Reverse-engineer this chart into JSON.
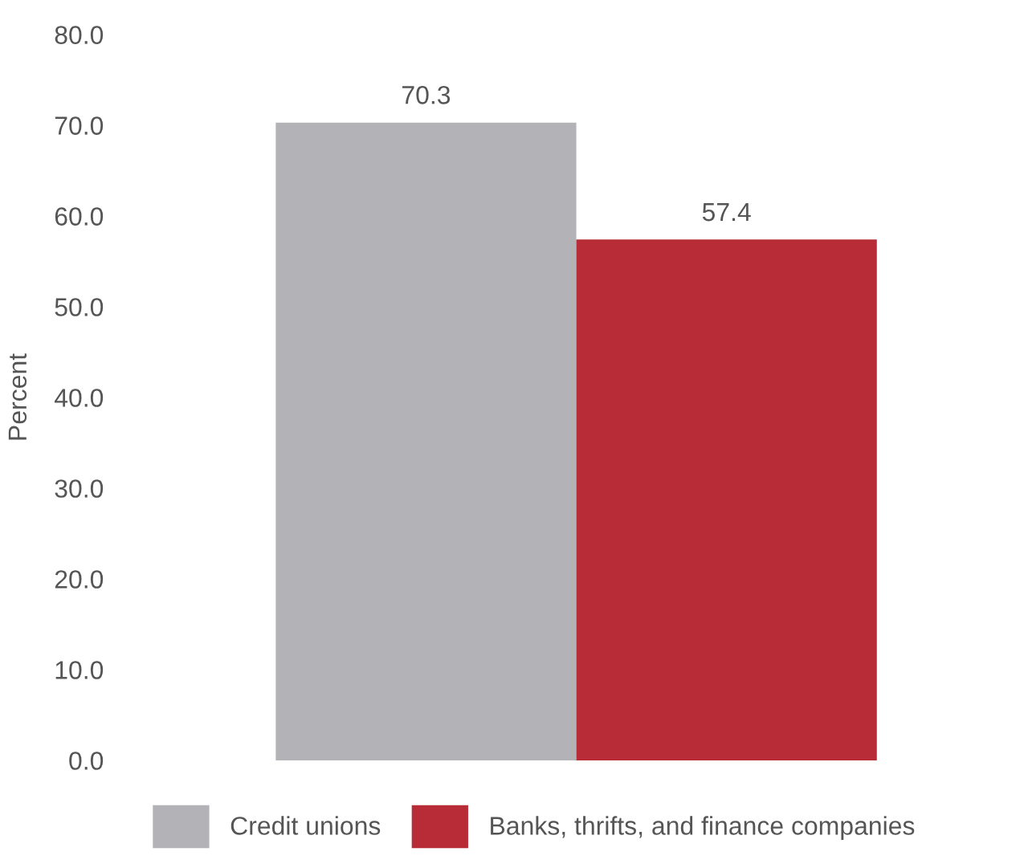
{
  "chart_data": {
    "type": "bar",
    "categories": [
      null
    ],
    "ylabel": "Percent",
    "series": [
      {
        "name": "Credit unions",
        "color": "#b3b2b6",
        "values": [
          70.3
        ]
      },
      {
        "name": "Banks, thrifts, and finance companies",
        "color": "#b72c37",
        "values": [
          57.4
        ]
      }
    ],
    "ylim": [
      0,
      80
    ],
    "yticks": [
      {
        "value": 0,
        "label": "0.0"
      },
      {
        "value": 10,
        "label": "10.0"
      },
      {
        "value": 20,
        "label": "20.0"
      },
      {
        "value": 30,
        "label": "30.0"
      },
      {
        "value": 40,
        "label": "40.0"
      },
      {
        "value": 50,
        "label": "50.0"
      },
      {
        "value": 60,
        "label": "60.0"
      },
      {
        "value": 70,
        "label": "70.0"
      },
      {
        "value": 80,
        "label": "80.0"
      }
    ],
    "data_labels": true,
    "legend": "bottom",
    "tick_labels": "y"
  }
}
